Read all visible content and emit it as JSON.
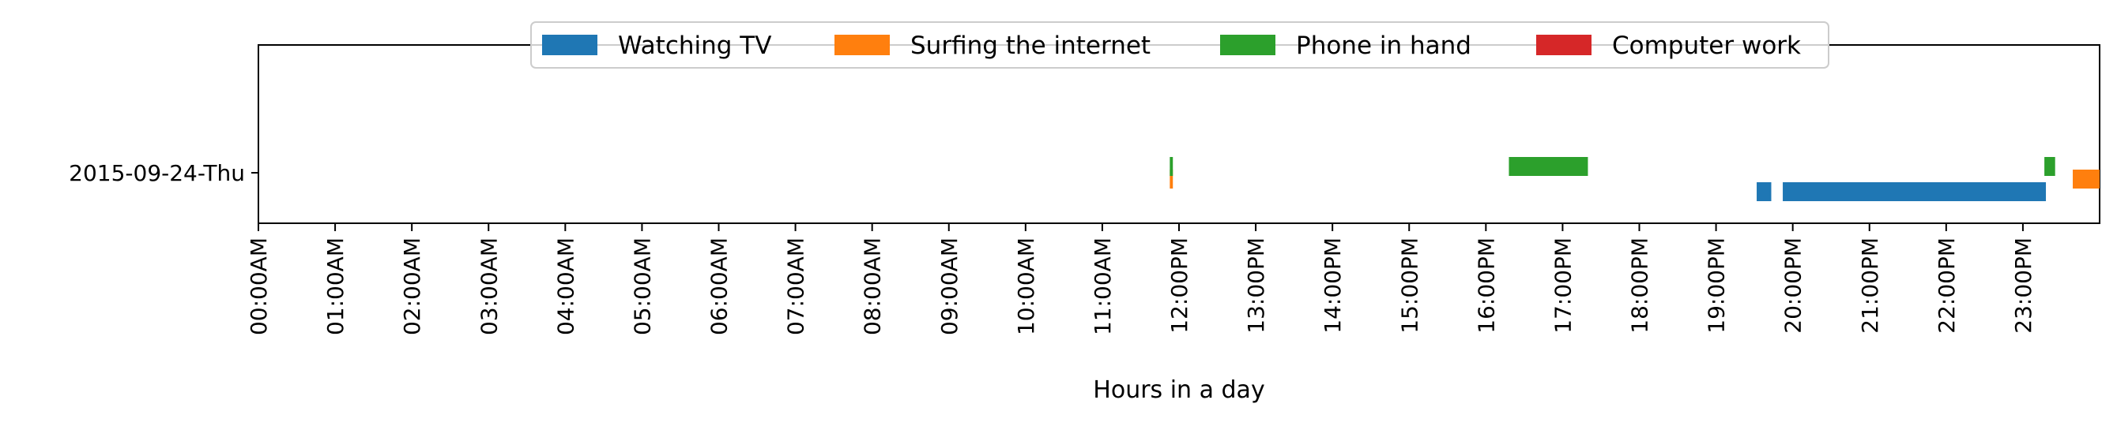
{
  "chart_data": {
    "type": "bar",
    "orientation": "horizontal-timeline",
    "title": "",
    "xlabel": "Hours in a day",
    "ylabel": "",
    "categories": [
      "2015-09-24-Thu"
    ],
    "x_ticks": [
      "00:00AM",
      "01:00AM",
      "02:00AM",
      "03:00AM",
      "04:00AM",
      "05:00AM",
      "06:00AM",
      "07:00AM",
      "08:00AM",
      "09:00AM",
      "10:00AM",
      "11:00AM",
      "12:00PM",
      "13:00PM",
      "14:00PM",
      "15:00PM",
      "16:00PM",
      "17:00PM",
      "18:00PM",
      "19:00PM",
      "20:00PM",
      "21:00PM",
      "22:00PM",
      "23:00PM"
    ],
    "xlim": [
      0,
      24
    ],
    "legend_position": "top-center",
    "grid": false,
    "series": [
      {
        "name": "Watching TV",
        "color": "#1f77b4",
        "segments": [
          {
            "category": "2015-09-24-Thu",
            "start": 19.53,
            "end": 19.72
          },
          {
            "category": "2015-09-24-Thu",
            "start": 19.87,
            "end": 23.3
          }
        ]
      },
      {
        "name": "Surfing the internet",
        "color": "#ff7f0e",
        "segments": [
          {
            "category": "2015-09-24-Thu",
            "start": 11.88,
            "end": 11.92
          },
          {
            "category": "2015-09-24-Thu",
            "start": 23.65,
            "end": 24.0
          }
        ]
      },
      {
        "name": "Phone in hand",
        "color": "#2ca02c",
        "segments": [
          {
            "category": "2015-09-24-Thu",
            "start": 11.88,
            "end": 11.92
          },
          {
            "category": "2015-09-24-Thu",
            "start": 16.3,
            "end": 17.33
          },
          {
            "category": "2015-09-24-Thu",
            "start": 23.28,
            "end": 23.42
          }
        ]
      },
      {
        "name": "Computer work",
        "color": "#d62728",
        "segments": []
      }
    ]
  }
}
